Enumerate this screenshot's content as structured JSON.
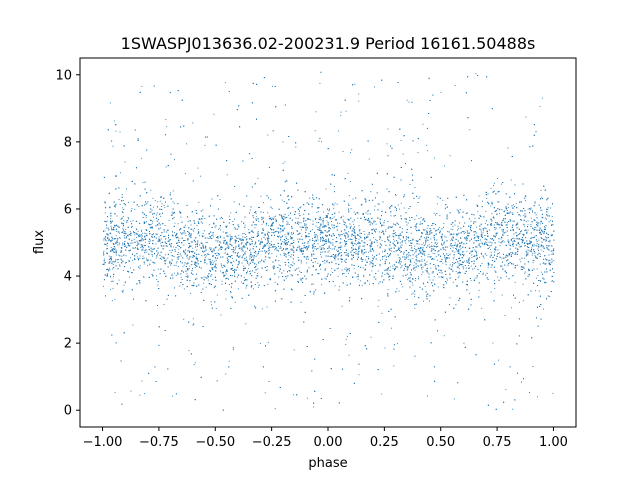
{
  "chart_data": {
    "type": "scatter",
    "title": "1SWASPJ013636.02-200231.9 Period 16161.50488s",
    "xlabel": "phase",
    "ylabel": "flux",
    "xlim": [
      -1.1,
      1.1
    ],
    "ylim": [
      -0.5,
      10.5
    ],
    "x_ticks": [
      -1.0,
      -0.75,
      -0.5,
      -0.25,
      0.0,
      0.25,
      0.5,
      0.75,
      1.0
    ],
    "x_tick_labels": [
      "−1.00",
      "−0.75",
      "−0.50",
      "−0.25",
      "0.00",
      "0.25",
      "0.50",
      "0.75",
      "1.00"
    ],
    "y_ticks": [
      0,
      2,
      4,
      6,
      8,
      10
    ],
    "y_tick_labels": [
      "0",
      "2",
      "4",
      "6",
      "8",
      "10"
    ],
    "grid": false,
    "series": [
      {
        "color": "#1f77b4",
        "x_range": [
          -1.0,
          1.0
        ],
        "y_range": [
          0.0,
          10.1
        ],
        "x": [
          -1.0,
          -0.9,
          -0.8,
          -0.7,
          -0.6,
          -0.5,
          -0.4,
          -0.3,
          -0.2,
          -0.1,
          0.0,
          0.1,
          0.2,
          0.3,
          0.4,
          0.5,
          0.6,
          0.7,
          0.8,
          0.9,
          1.0
        ],
        "y_center": [
          5.0,
          5.1,
          5.2,
          5.05,
          4.8,
          4.6,
          4.75,
          4.95,
          5.1,
          5.0,
          4.95,
          5.0,
          5.05,
          4.95,
          4.75,
          4.6,
          4.8,
          5.05,
          5.2,
          5.1,
          5.0
        ],
        "y_band_low": [
          3.6,
          3.8,
          3.9,
          3.8,
          3.5,
          3.3,
          3.4,
          3.7,
          3.8,
          3.7,
          3.7,
          3.7,
          3.8,
          3.7,
          3.4,
          3.3,
          3.5,
          3.8,
          3.9,
          3.8,
          3.6
        ],
        "y_band_high": [
          6.4,
          6.5,
          6.6,
          6.4,
          6.1,
          5.9,
          6.1,
          6.3,
          6.4,
          6.3,
          6.2,
          6.3,
          6.4,
          6.3,
          6.1,
          5.9,
          6.1,
          6.4,
          6.6,
          6.5,
          6.4
        ],
        "marker": "point"
      }
    ]
  }
}
